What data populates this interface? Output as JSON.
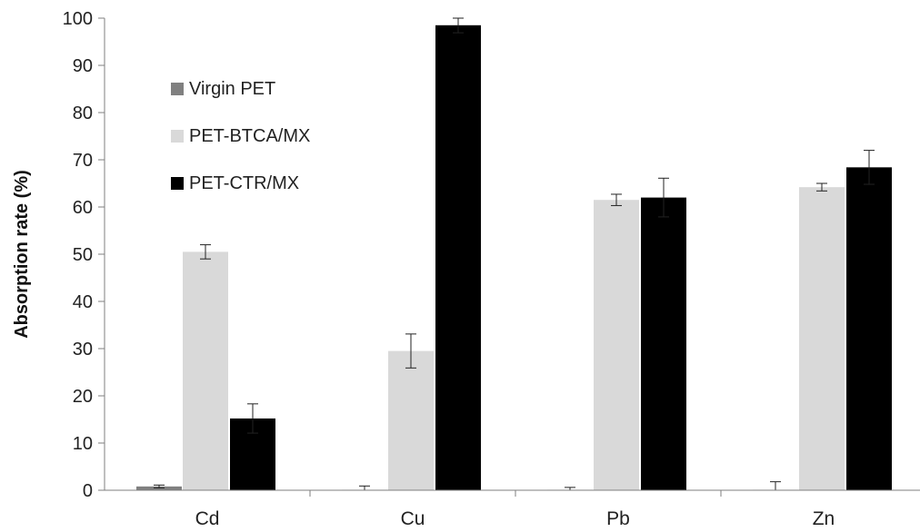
{
  "chart_data": {
    "type": "bar",
    "title": "",
    "xlabel": "",
    "ylabel": "Absorption rate (%)",
    "ylim": [
      0,
      100
    ],
    "yticks": [
      "0",
      "10",
      "20",
      "30",
      "40",
      "50",
      "60",
      "70",
      "80",
      "90",
      "100"
    ],
    "categories": [
      "Cd",
      "Cu",
      "Pb",
      "Zn"
    ],
    "grid": false,
    "legend_position": "top-left",
    "series": [
      {
        "name": "Virgin PET",
        "color": "#808080",
        "values": [
          0.8,
          0.1,
          0.1,
          0.1
        ],
        "errors": [
          0.3,
          0.8,
          0.5,
          1.7
        ]
      },
      {
        "name": "PET-BTCA/MX",
        "color": "#d9d9d9",
        "values": [
          50.5,
          29.5,
          61.5,
          64.2
        ],
        "errors": [
          1.5,
          3.6,
          1.2,
          0.8
        ]
      },
      {
        "name": "PET-CTR/MX",
        "color": "#000000",
        "values": [
          15.2,
          98.5,
          62.0,
          68.4
        ],
        "errors": [
          3.1,
          1.6,
          4.1,
          3.6
        ]
      }
    ]
  }
}
